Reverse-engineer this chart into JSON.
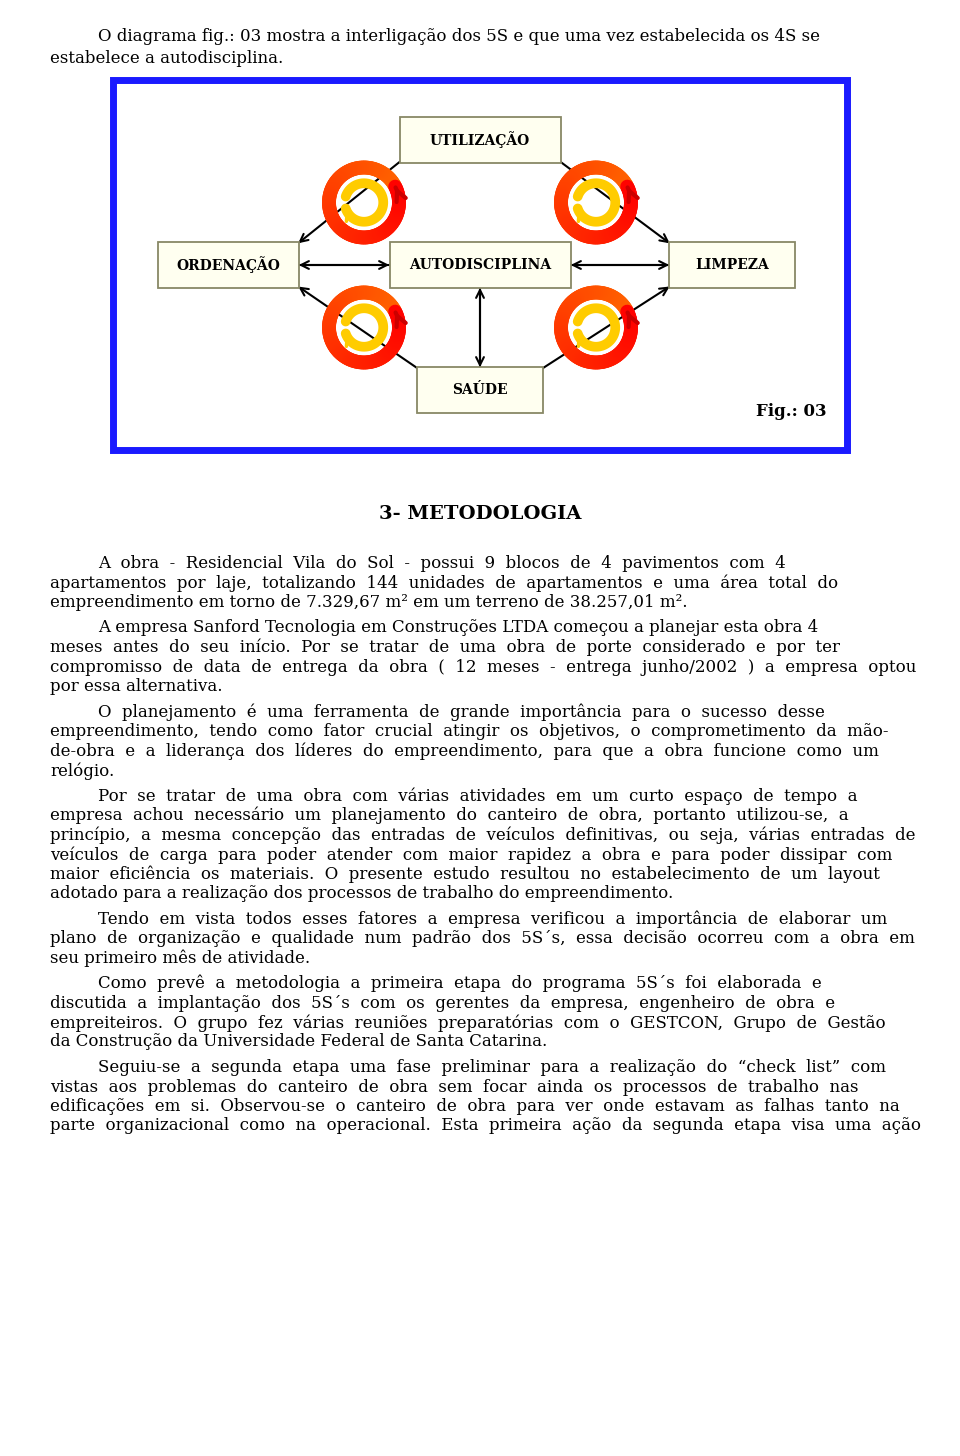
{
  "intro_line1": "O diagrama fig.: 03 mostra a interligação dos 5S e que uma vez estabelecida os 4S se",
  "intro_line2": "estabelece a autodisciplina.",
  "fig_label": "Fig.: 03",
  "section_title": "3- METODOLOGIA",
  "paragraphs": [
    {
      "indent": true,
      "lines": [
        "A  obra  -  Residencial  Vila  do  Sol  -  possui  9  blocos  de  4  pavimentos  com  4",
        "apartamentos  por  laje,  totalizando  144  unidades  de  apartamentos  e  uma  área  total  do",
        "empreendimento em torno de 7.329,67 m² em um terreno de 38.257,01 m²."
      ]
    },
    {
      "indent": true,
      "lines": [
        "A empresa Sanford Tecnologia em Construções LTDA começou a planejar esta obra 4",
        "meses  antes  do  seu  início.  Por  se  tratar  de  uma  obra  de  porte  considerado  e  por  ter",
        "compromisso  de  data  de  entrega  da  obra  (  12  meses  -  entrega  junho/2002  )  a  empresa  optou",
        "por essa alternativa."
      ]
    },
    {
      "indent": true,
      "lines": [
        "O  planejamento  é  uma  ferramenta  de  grande  importância  para  o  sucesso  desse",
        "empreendimento,  tendo  como  fator  crucial  atingir  os  objetivos,  o  comprometimento  da  mão-",
        "de-obra  e  a  liderança  dos  líderes  do  empreendimento,  para  que  a  obra  funcione  como  um",
        "relógio."
      ]
    },
    {
      "indent": true,
      "lines": [
        "Por  se  tratar  de  uma  obra  com  várias  atividades  em  um  curto  espaço  de  tempo  a",
        "empresa  achou  necessário  um  planejamento  do  canteiro  de  obra,  portanto  utilizou-se,  a",
        "princípio,  a  mesma  concepção  das  entradas  de  veículos  definitivas,  ou  seja,  várias  entradas  de",
        "veículos  de  carga  para  poder  atender  com  maior  rapidez  a  obra  e  para  poder  dissipar  com",
        "maior  eficiência  os  materiais.  O  presente  estudo  resultou  no  estabelecimento  de  um  layout",
        "adotado para a realização dos processos de trabalho do empreendimento."
      ]
    },
    {
      "indent": true,
      "lines": [
        "Tendo  em  vista  todos  esses  fatores  a  empresa  verificou  a  importância  de  elaborar  um",
        "plano  de  organização  e  qualidade  num  padrão  dos  5S´s,  essa  decisão  ocorreu  com  a  obra  em",
        "seu primeiro mês de atividade."
      ]
    },
    {
      "indent": true,
      "lines": [
        "Como  prevê  a  metodologia  a  primeira  etapa  do  programa  5S´s  foi  elaborada  e",
        "discutida  a  implantação  dos  5S´s  com  os  gerentes  da  empresa,  engenheiro  de  obra  e",
        "empreiteiros.  O  grupo  fez  várias  reuniões  preparatórias  com  o  GESTCON,  Grupo  de  Gestão",
        "da Construção da Universidade Federal de Santa Catarina."
      ]
    },
    {
      "indent": true,
      "lines": [
        "Seguiu-se  a  segunda  etapa  uma  fase  preliminar  para  a  realização  do  “check  list”  com",
        "vistas  aos  problemas  do  canteiro  de  obra  sem  focar  ainda  os  processos  de  trabalho  nas",
        "edificações  em  si.  Observou-se  o  canteiro  de  obra  para  ver  onde  estavam  as  falhas  tanto  na",
        "parte  organizacional  como  na  operacional.  Esta  primeira  ação  da  segunda  etapa  visa  uma  ação"
      ]
    }
  ],
  "bg_color": "#ffffff",
  "text_color": "#000000",
  "box_bg": "#fffff0",
  "diagram_border": "#0000cc"
}
